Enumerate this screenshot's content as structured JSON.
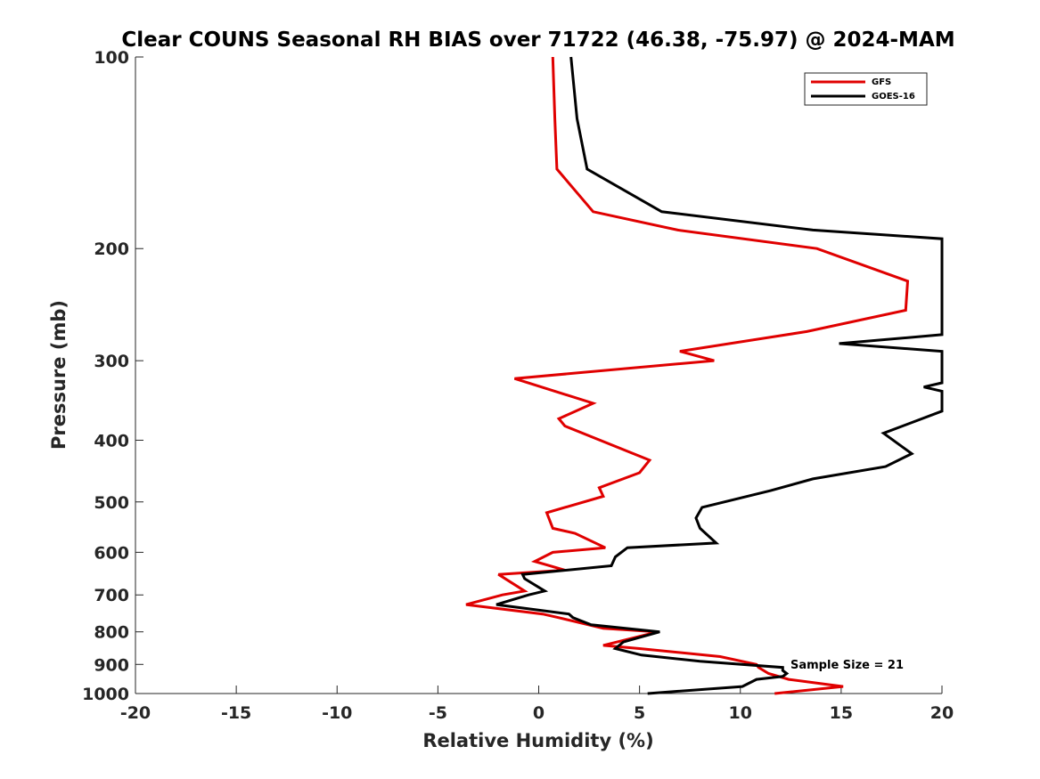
{
  "chart_data": {
    "type": "line",
    "title": "Clear COUNS Seasonal RH BIAS over 71722 (46.38, -75.97) @ 2024-MAM",
    "xlabel": "Relative Humidity (%)",
    "ylabel": "Pressure (mb)",
    "xlim": [
      -20,
      20
    ],
    "ylim": [
      100,
      1000
    ],
    "y_scale": "log",
    "y_reversed": true,
    "x_ticks": [
      "-20",
      "-15",
      "-10",
      "-5",
      "0",
      "5",
      "10",
      "15",
      "20"
    ],
    "y_ticks": [
      "100",
      "200",
      "300",
      "400",
      "500",
      "600",
      "700",
      "800",
      "900",
      "1000"
    ],
    "grid": false,
    "legend_position": "top-right",
    "annotation": "Sample Size = 21",
    "series": [
      {
        "name": "GFS",
        "color": "#e00000",
        "points": [
          [
            0.7,
            100
          ],
          [
            0.8,
            125
          ],
          [
            0.9,
            150
          ],
          [
            2.7,
            175
          ],
          [
            6.9,
            187
          ],
          [
            13.8,
            200
          ],
          [
            18.3,
            225
          ],
          [
            18.2,
            250
          ],
          [
            13.3,
            270
          ],
          [
            7.0,
            290
          ],
          [
            8.7,
            300
          ],
          [
            -1.2,
            320
          ],
          [
            2.7,
            350
          ],
          [
            1.0,
            370
          ],
          [
            1.3,
            380
          ],
          [
            5.5,
            430
          ],
          [
            5.0,
            450
          ],
          [
            3.0,
            475
          ],
          [
            3.2,
            490
          ],
          [
            0.4,
            520
          ],
          [
            0.7,
            550
          ],
          [
            1.8,
            560
          ],
          [
            3.3,
            590
          ],
          [
            0.7,
            600
          ],
          [
            -0.2,
            620
          ],
          [
            1.3,
            640
          ],
          [
            -2.0,
            650
          ],
          [
            -0.7,
            690
          ],
          [
            -1.8,
            700
          ],
          [
            -3.6,
            725
          ],
          [
            0.2,
            750
          ],
          [
            1.0,
            760
          ],
          [
            3.2,
            790
          ],
          [
            5.9,
            800
          ],
          [
            3.2,
            840
          ],
          [
            5.0,
            850
          ],
          [
            9.0,
            875
          ],
          [
            10.8,
            900
          ],
          [
            10.9,
            910
          ],
          [
            11.4,
            930
          ],
          [
            12.4,
            950
          ],
          [
            15.1,
            975
          ],
          [
            11.7,
            1000
          ]
        ]
      },
      {
        "name": "GOES-16",
        "color": "#000000",
        "points": [
          [
            1.6,
            100
          ],
          [
            1.9,
            125
          ],
          [
            2.4,
            150
          ],
          [
            6.1,
            175
          ],
          [
            13.6,
            187
          ],
          [
            20.0,
            193
          ],
          [
            20.0,
            273
          ],
          [
            14.9,
            282
          ],
          [
            20.0,
            290
          ],
          [
            20.0,
            325
          ],
          [
            19.1,
            330
          ],
          [
            20.0,
            335
          ],
          [
            20.0,
            360
          ],
          [
            17.1,
            390
          ],
          [
            18.5,
            420
          ],
          [
            17.2,
            440
          ],
          [
            13.6,
            460
          ],
          [
            11.5,
            480
          ],
          [
            8.1,
            510
          ],
          [
            7.8,
            530
          ],
          [
            8.0,
            550
          ],
          [
            8.8,
            580
          ],
          [
            4.4,
            590
          ],
          [
            3.8,
            610
          ],
          [
            3.6,
            630
          ],
          [
            -0.8,
            650
          ],
          [
            -0.7,
            660
          ],
          [
            0.3,
            690
          ],
          [
            -0.5,
            700
          ],
          [
            -2.1,
            725
          ],
          [
            1.5,
            750
          ],
          [
            1.7,
            760
          ],
          [
            2.6,
            780
          ],
          [
            6.0,
            800
          ],
          [
            4.2,
            830
          ],
          [
            3.8,
            850
          ],
          [
            5.1,
            870
          ],
          [
            8.0,
            890
          ],
          [
            12.1,
            910
          ],
          [
            12.1,
            920
          ],
          [
            12.3,
            930
          ],
          [
            12.1,
            940
          ],
          [
            10.8,
            950
          ],
          [
            10.1,
            975
          ],
          [
            5.4,
            1000
          ]
        ]
      }
    ]
  }
}
